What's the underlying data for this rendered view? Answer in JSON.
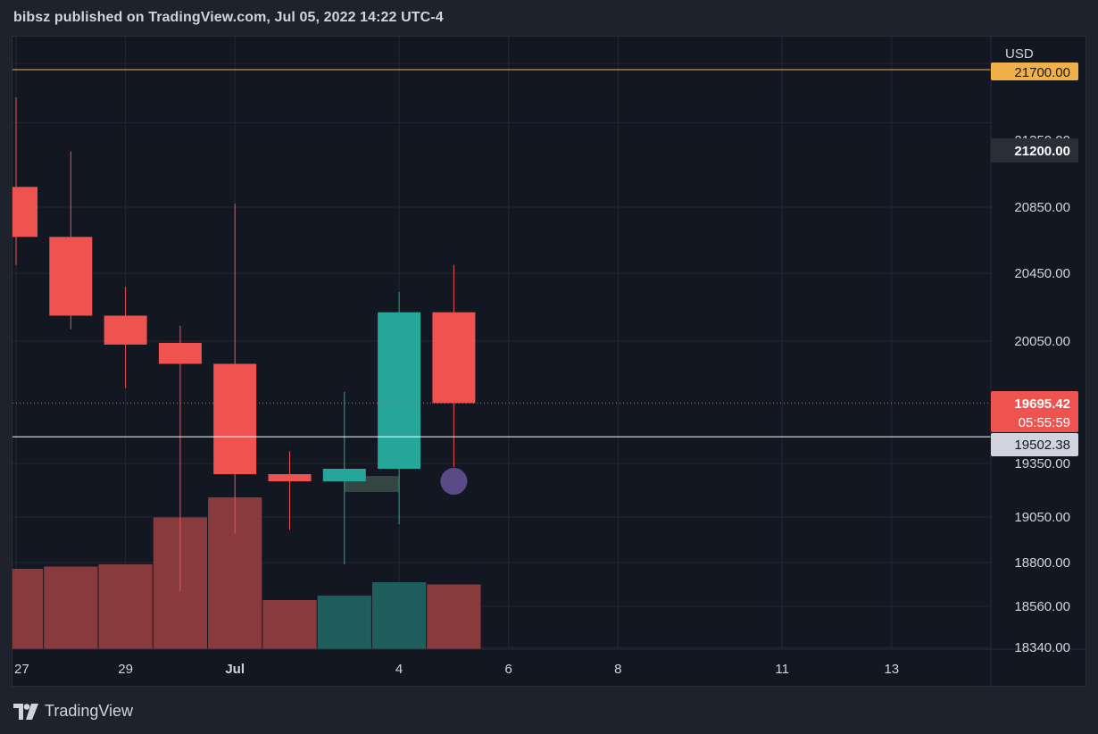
{
  "header": {
    "publish_line": "bibsz published on TradingView.com, Jul 05, 2022 14:22 UTC-4"
  },
  "footer": {
    "brand": "TradingView"
  },
  "colors": {
    "up": "#26a69a",
    "down": "#ef5350",
    "volume_up": "#1f5e5c",
    "volume_down": "#883a3c",
    "panel_bg": "#131722",
    "grid": "#232733",
    "text": "#d1d4dc",
    "alert_line": "#f0b14a",
    "crosshair": "#ffffff",
    "marker": "#5e4d8c"
  },
  "chart_data": {
    "type": "candlestick",
    "currency": "USD",
    "x_labels": [
      "27",
      "29",
      "Jul",
      "4",
      "6",
      "8",
      "11",
      "13"
    ],
    "y_ticks": [
      "21700.00",
      "21350.00",
      "20850.00",
      "20450.00",
      "20050.00",
      "19350.00",
      "19050.00",
      "18800.00",
      "18560.00",
      "18340.00"
    ],
    "candles": [
      {
        "date": "2022-06-27",
        "open": 20970,
        "high": 21500,
        "low": 20500,
        "close": 20670
      },
      {
        "date": "2022-06-28",
        "open": 20670,
        "high": 21180,
        "low": 20120,
        "close": 20200
      },
      {
        "date": "2022-06-29",
        "open": 20200,
        "high": 20370,
        "low": 19780,
        "close": 20030
      },
      {
        "date": "2022-06-30",
        "open": 20040,
        "high": 20140,
        "low": 18640,
        "close": 19920
      },
      {
        "date": "2022-07-01",
        "open": 19920,
        "high": 20870,
        "low": 18960,
        "close": 19290
      },
      {
        "date": "2022-07-02",
        "open": 19290,
        "high": 19420,
        "low": 18980,
        "close": 19250
      },
      {
        "date": "2022-07-03",
        "open": 19250,
        "high": 19760,
        "low": 18790,
        "close": 19320
      },
      {
        "date": "2022-07-04",
        "open": 19320,
        "high": 20340,
        "low": 19010,
        "close": 20220
      },
      {
        "date": "2022-07-05",
        "open": 20220,
        "high": 20500,
        "low": 19330,
        "close": 19695.42
      }
    ],
    "volume": [
      {
        "date": "2022-06-27",
        "direction": "down",
        "relative": 0.36
      },
      {
        "date": "2022-06-28",
        "direction": "down",
        "relative": 0.37
      },
      {
        "date": "2022-06-29",
        "direction": "down",
        "relative": 0.38
      },
      {
        "date": "2022-06-30",
        "direction": "down",
        "relative": 0.59
      },
      {
        "date": "2022-07-01",
        "direction": "down",
        "relative": 0.68
      },
      {
        "date": "2022-07-02",
        "direction": "down",
        "relative": 0.22
      },
      {
        "date": "2022-07-03",
        "direction": "up",
        "relative": 0.24
      },
      {
        "date": "2022-07-04",
        "direction": "up",
        "relative": 0.3
      },
      {
        "date": "2022-07-05",
        "direction": "down",
        "relative": 0.29
      }
    ],
    "price_labels": {
      "alert_line": "21700.00",
      "highlight": "21200.00",
      "last_price": "19695.42",
      "countdown": "05:55:59",
      "crosshair": "19502.38"
    },
    "levels": {
      "alert": 21700,
      "last": 19695.42,
      "crosshair": 19502.38
    },
    "annotations": {
      "marker_price": 19250,
      "marker_date": "2022-07-05",
      "shaded_zone": {
        "price_top": 19280,
        "price_bottom": 19190,
        "from": "2022-07-03",
        "to": "2022-07-04"
      }
    },
    "grid": true
  }
}
